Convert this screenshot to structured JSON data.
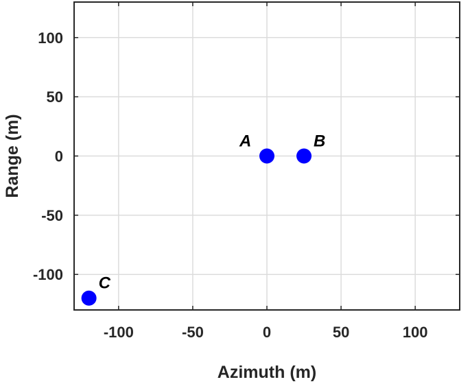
{
  "chart_data": {
    "type": "scatter",
    "xlabel": "Azimuth (m)",
    "ylabel": "Range (m)",
    "xlim": [
      -130,
      130
    ],
    "ylim": [
      -130,
      130
    ],
    "xticks": [
      -100,
      -50,
      0,
      50,
      100
    ],
    "yticks": [
      -100,
      -50,
      0,
      50,
      100
    ],
    "xtick_labels": [
      "-100",
      "-50",
      "0",
      "50",
      "100"
    ],
    "ytick_labels": [
      "-100",
      "-50",
      "0",
      "50",
      "100"
    ],
    "grid": true,
    "points": [
      {
        "label": "A",
        "x": 0,
        "y": 0
      },
      {
        "label": "B",
        "x": 25,
        "y": 0
      },
      {
        "label": "C",
        "x": -120,
        "y": -120
      }
    ],
    "marker_color": "#0000ff"
  }
}
